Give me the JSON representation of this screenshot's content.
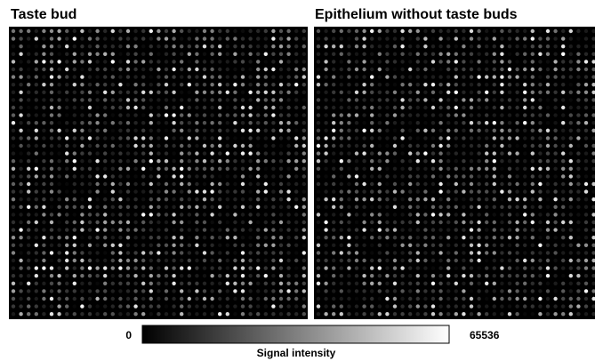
{
  "panels": [
    {
      "title": "Taste bud"
    },
    {
      "title": "Epithelium without taste buds"
    }
  ],
  "colorbar": {
    "min": 0,
    "max": 65536,
    "label": "Signal intensity"
  }
}
